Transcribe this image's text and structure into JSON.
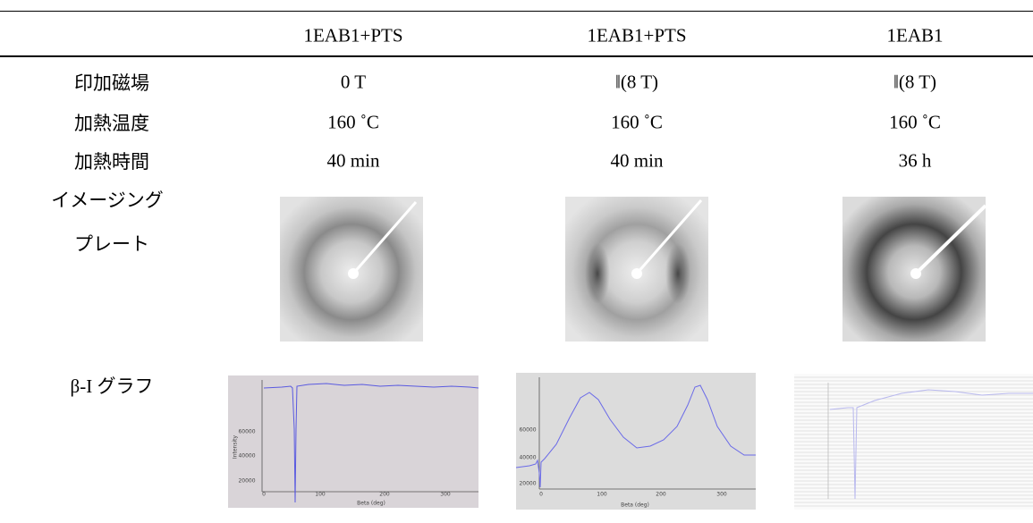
{
  "table": {
    "header": [
      "1EAB1+PTS",
      "1EAB1+PTS",
      "1EAB1"
    ],
    "rows": [
      {
        "label": "印加磁場",
        "cells": [
          "0 T",
          "‖(8 T)",
          "‖(8 T)"
        ]
      },
      {
        "label": "加熱温度",
        "cells": [
          "160 ˚C",
          "160 ˚C",
          "160 ˚C"
        ]
      },
      {
        "label": "加熱時間",
        "cells": [
          "40 min",
          "40 min",
          "36 h"
        ]
      }
    ],
    "image_row_label": [
      "イメージング",
      "プレート"
    ],
    "graph_row_label": "β-I グラフ"
  },
  "graphs": [
    {
      "yticks": [
        "60000",
        "40000",
        "20000"
      ],
      "xticks": [
        "0",
        "100",
        "200",
        "300"
      ],
      "xlabel": "Beta (deg)",
      "ylabel": "Intensity"
    },
    {
      "yticks": [
        "60000",
        "40000",
        "20000"
      ],
      "xticks": [
        "0",
        "100",
        "200",
        "300"
      ],
      "xlabel": "Beta (deg)"
    }
  ]
}
